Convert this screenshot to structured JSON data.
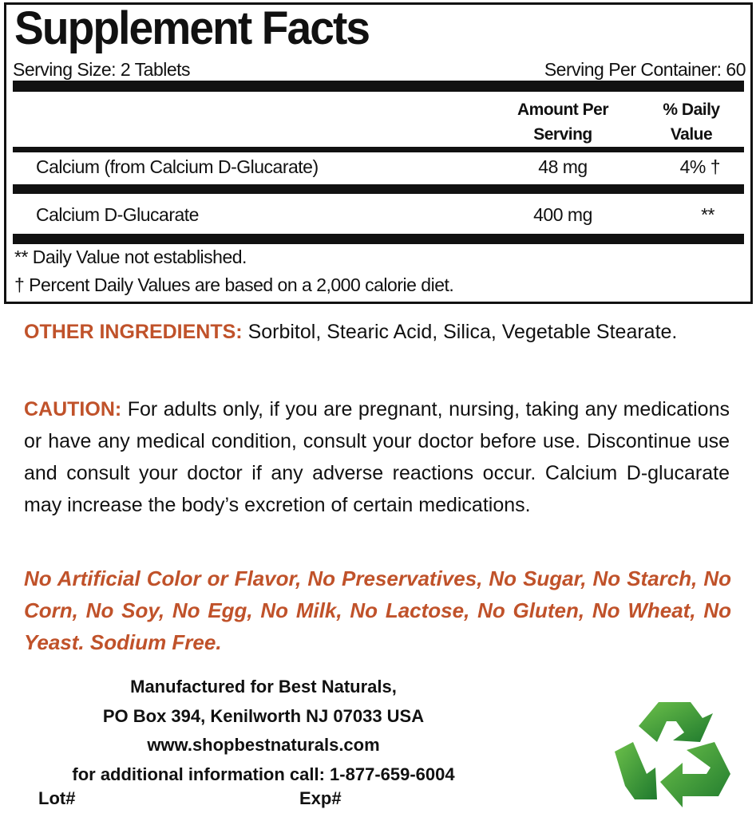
{
  "facts": {
    "title": "Supplement Facts",
    "serving_size": "Serving Size: 2 Tablets",
    "servings_per_container": "Serving Per Container: 60",
    "col_amount": "Amount Per Serving",
    "col_dv": "% Daily Value",
    "rows": [
      {
        "name": "Calcium (from Calcium D-Glucarate)",
        "amount": "48 mg",
        "dv": "4% †"
      },
      {
        "name": "Calcium D-Glucarate",
        "amount": "400 mg",
        "dv": "**"
      }
    ],
    "footnotes": [
      "** Daily Value not established.",
      "† Percent Daily Values are based on a 2,000 calorie diet."
    ]
  },
  "other_ingredients": {
    "label": "OTHER INGREDIENTS:",
    "text": " Sorbitol, Stearic Acid, Silica, Vegetable Stearate."
  },
  "caution": {
    "label": "CAUTION:",
    "text": " For adults only, if you are pregnant, nursing, taking any medications or have any medical condition, consult your doctor before use. Discontinue use and consult your doctor if any adverse reactions occur. Calcium D-glucarate may increase the body’s excretion of certain medications."
  },
  "claims": "No Artificial Color or Flavor, No Preservatives, No Sugar, No Starch, No Corn, No Soy, No Egg, No Milk, No Lactose, No Gluten, No Wheat, No Yeast. Sodium Free.",
  "manufacturer": {
    "lines": [
      "Manufactured for Best Naturals,",
      "PO Box 394, Kenilworth NJ 07033 USA",
      "www.shopbestnaturals.com",
      "for additional information call: 1-877-659-6004"
    ],
    "lot": "Lot#",
    "exp": "Exp#"
  },
  "colors": {
    "accent": "#c0522a",
    "recycle": "#3aa03c"
  },
  "icons": {
    "recycle": "recycle-icon"
  }
}
